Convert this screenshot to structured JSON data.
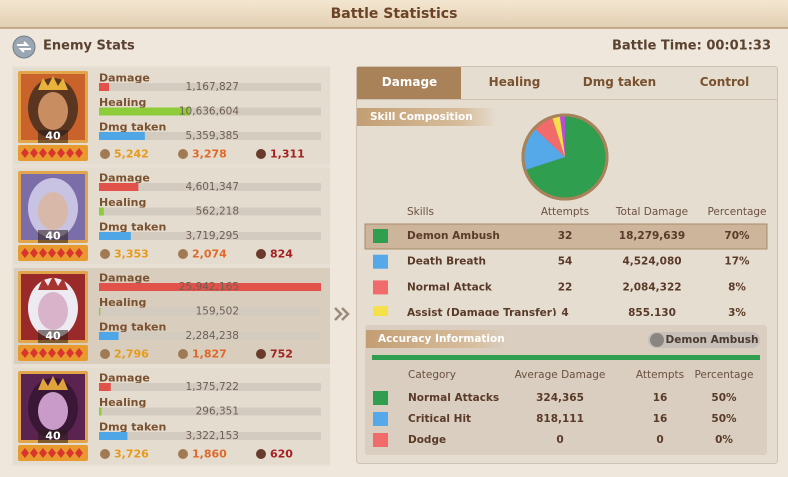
{
  "header": {
    "title": "Battle Statistics"
  },
  "enemy_stats": {
    "title": "Enemy Stats",
    "battle_time": "Battle Time: 00:01:33"
  },
  "stat_labels": [
    "Damage",
    "Healing",
    "Dmg taken"
  ],
  "heroes": [
    {
      "level": "40",
      "damage": "1,167,827",
      "healing": "10,636,604",
      "dmg_taken": "5,359,385",
      "stats": [
        "5,242",
        "3,278",
        "1,311"
      ]
    },
    {
      "level": "40",
      "damage": "4,601,347",
      "healing": "562,218",
      "dmg_taken": "3,719,295",
      "stats": [
        "3,353",
        "2,074",
        "824"
      ]
    },
    {
      "level": "40",
      "damage": "25,942,165",
      "healing": "159,502",
      "dmg_taken": "2,284,238",
      "stats": [
        "2,796",
        "1,827",
        "752"
      ]
    },
    {
      "level": "40",
      "damage": "1,375,722",
      "healing": "296,351",
      "dmg_taken": "3,322,153",
      "stats": [
        "3,726",
        "1,860",
        "620"
      ]
    }
  ],
  "tabs": [
    "Damage",
    "Healing",
    "Dmg taken",
    "Control"
  ],
  "active_tab": 0,
  "skill_composition": {
    "title": "Skill Composition",
    "columns": [
      "Skills",
      "Attempts",
      "Total Damage",
      "Percentage"
    ],
    "rows": [
      {
        "color": "#2f9e4f",
        "skill": "Demon Ambush",
        "attempts": "32",
        "total_damage": "18,279,639",
        "percentage": "70%"
      },
      {
        "color": "#55a9e8",
        "skill": "Death Breath",
        "attempts": "54",
        "total_damage": "4,524,080",
        "percentage": "17%"
      },
      {
        "color": "#f26b6b",
        "skill": "Normal Attack",
        "attempts": "22",
        "total_damage": "2,084,322",
        "percentage": "8%"
      },
      {
        "color": "#f5e04a",
        "skill": "Assist (Damage Transfer)",
        "attempts": "4",
        "total_damage": "855,130",
        "percentage": "3%"
      }
    ]
  },
  "accuracy": {
    "title": "Accuracy Information",
    "selected_skill": "Demon Ambush",
    "columns": [
      "Category",
      "Average Damage",
      "Attempts",
      "Percentage"
    ],
    "rows": [
      {
        "color": "#2f9e4f",
        "category": "Normal Attacks",
        "average_damage": "324,365",
        "attempts": "16",
        "percentage": "50%"
      },
      {
        "color": "#55a9e8",
        "category": "Critical Hit",
        "average_damage": "818,111",
        "attempts": "16",
        "percentage": "50%"
      },
      {
        "color": "#f26b6b",
        "category": "Dodge",
        "average_damage": "0",
        "attempts": "0",
        "percentage": "0%"
      }
    ]
  }
}
